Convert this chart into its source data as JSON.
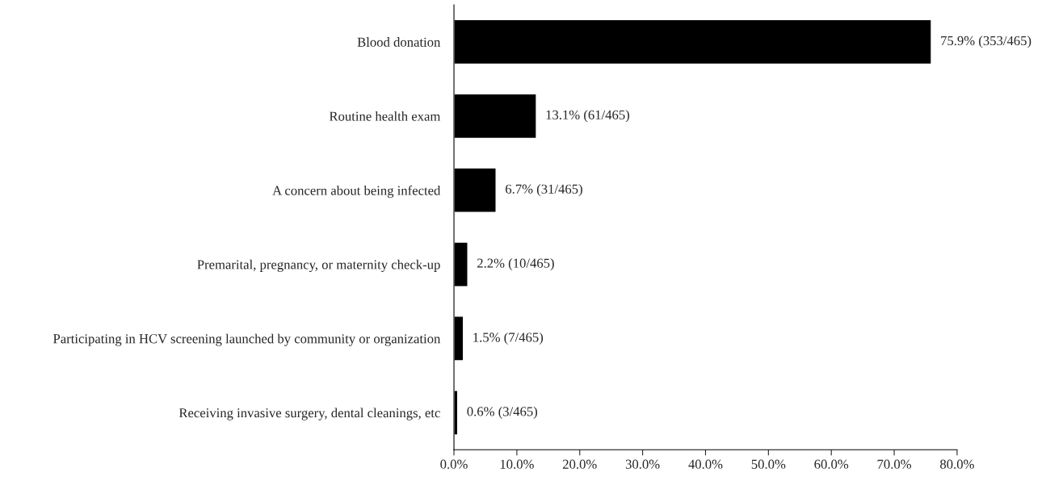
{
  "chart_data": {
    "type": "bar",
    "orientation": "horizontal",
    "categories": [
      "Blood donation",
      "Routine health exam",
      "A concern about being infected",
      "Premarital, pregnancy, or maternity check-up",
      "Participating in HCV screening launched by community or organization",
      "Receiving invasive surgery, dental cleanings, etc"
    ],
    "values": [
      75.9,
      13.1,
      6.7,
      2.2,
      1.5,
      0.6
    ],
    "value_labels": [
      "75.9% (353/465)",
      "13.1% (61/465)",
      "6.7% (31/465)",
      "2.2% (10/465)",
      "1.5% (7/465)",
      "0.6% (3/465)"
    ],
    "color": "#000000",
    "xlim": [
      0,
      80
    ],
    "xticks": [
      {
        "value": 0,
        "label": "0.0%"
      },
      {
        "value": 10,
        "label": "10.0%"
      },
      {
        "value": 20,
        "label": "20.0%"
      },
      {
        "value": 30,
        "label": "30.0%"
      },
      {
        "value": 40,
        "label": "40.0%"
      },
      {
        "value": 50,
        "label": "50.0%"
      },
      {
        "value": 60,
        "label": "60.0%"
      },
      {
        "value": 70,
        "label": "70.0%"
      },
      {
        "value": 80,
        "label": "80.0%"
      }
    ],
    "grid": false,
    "legend": false
  }
}
